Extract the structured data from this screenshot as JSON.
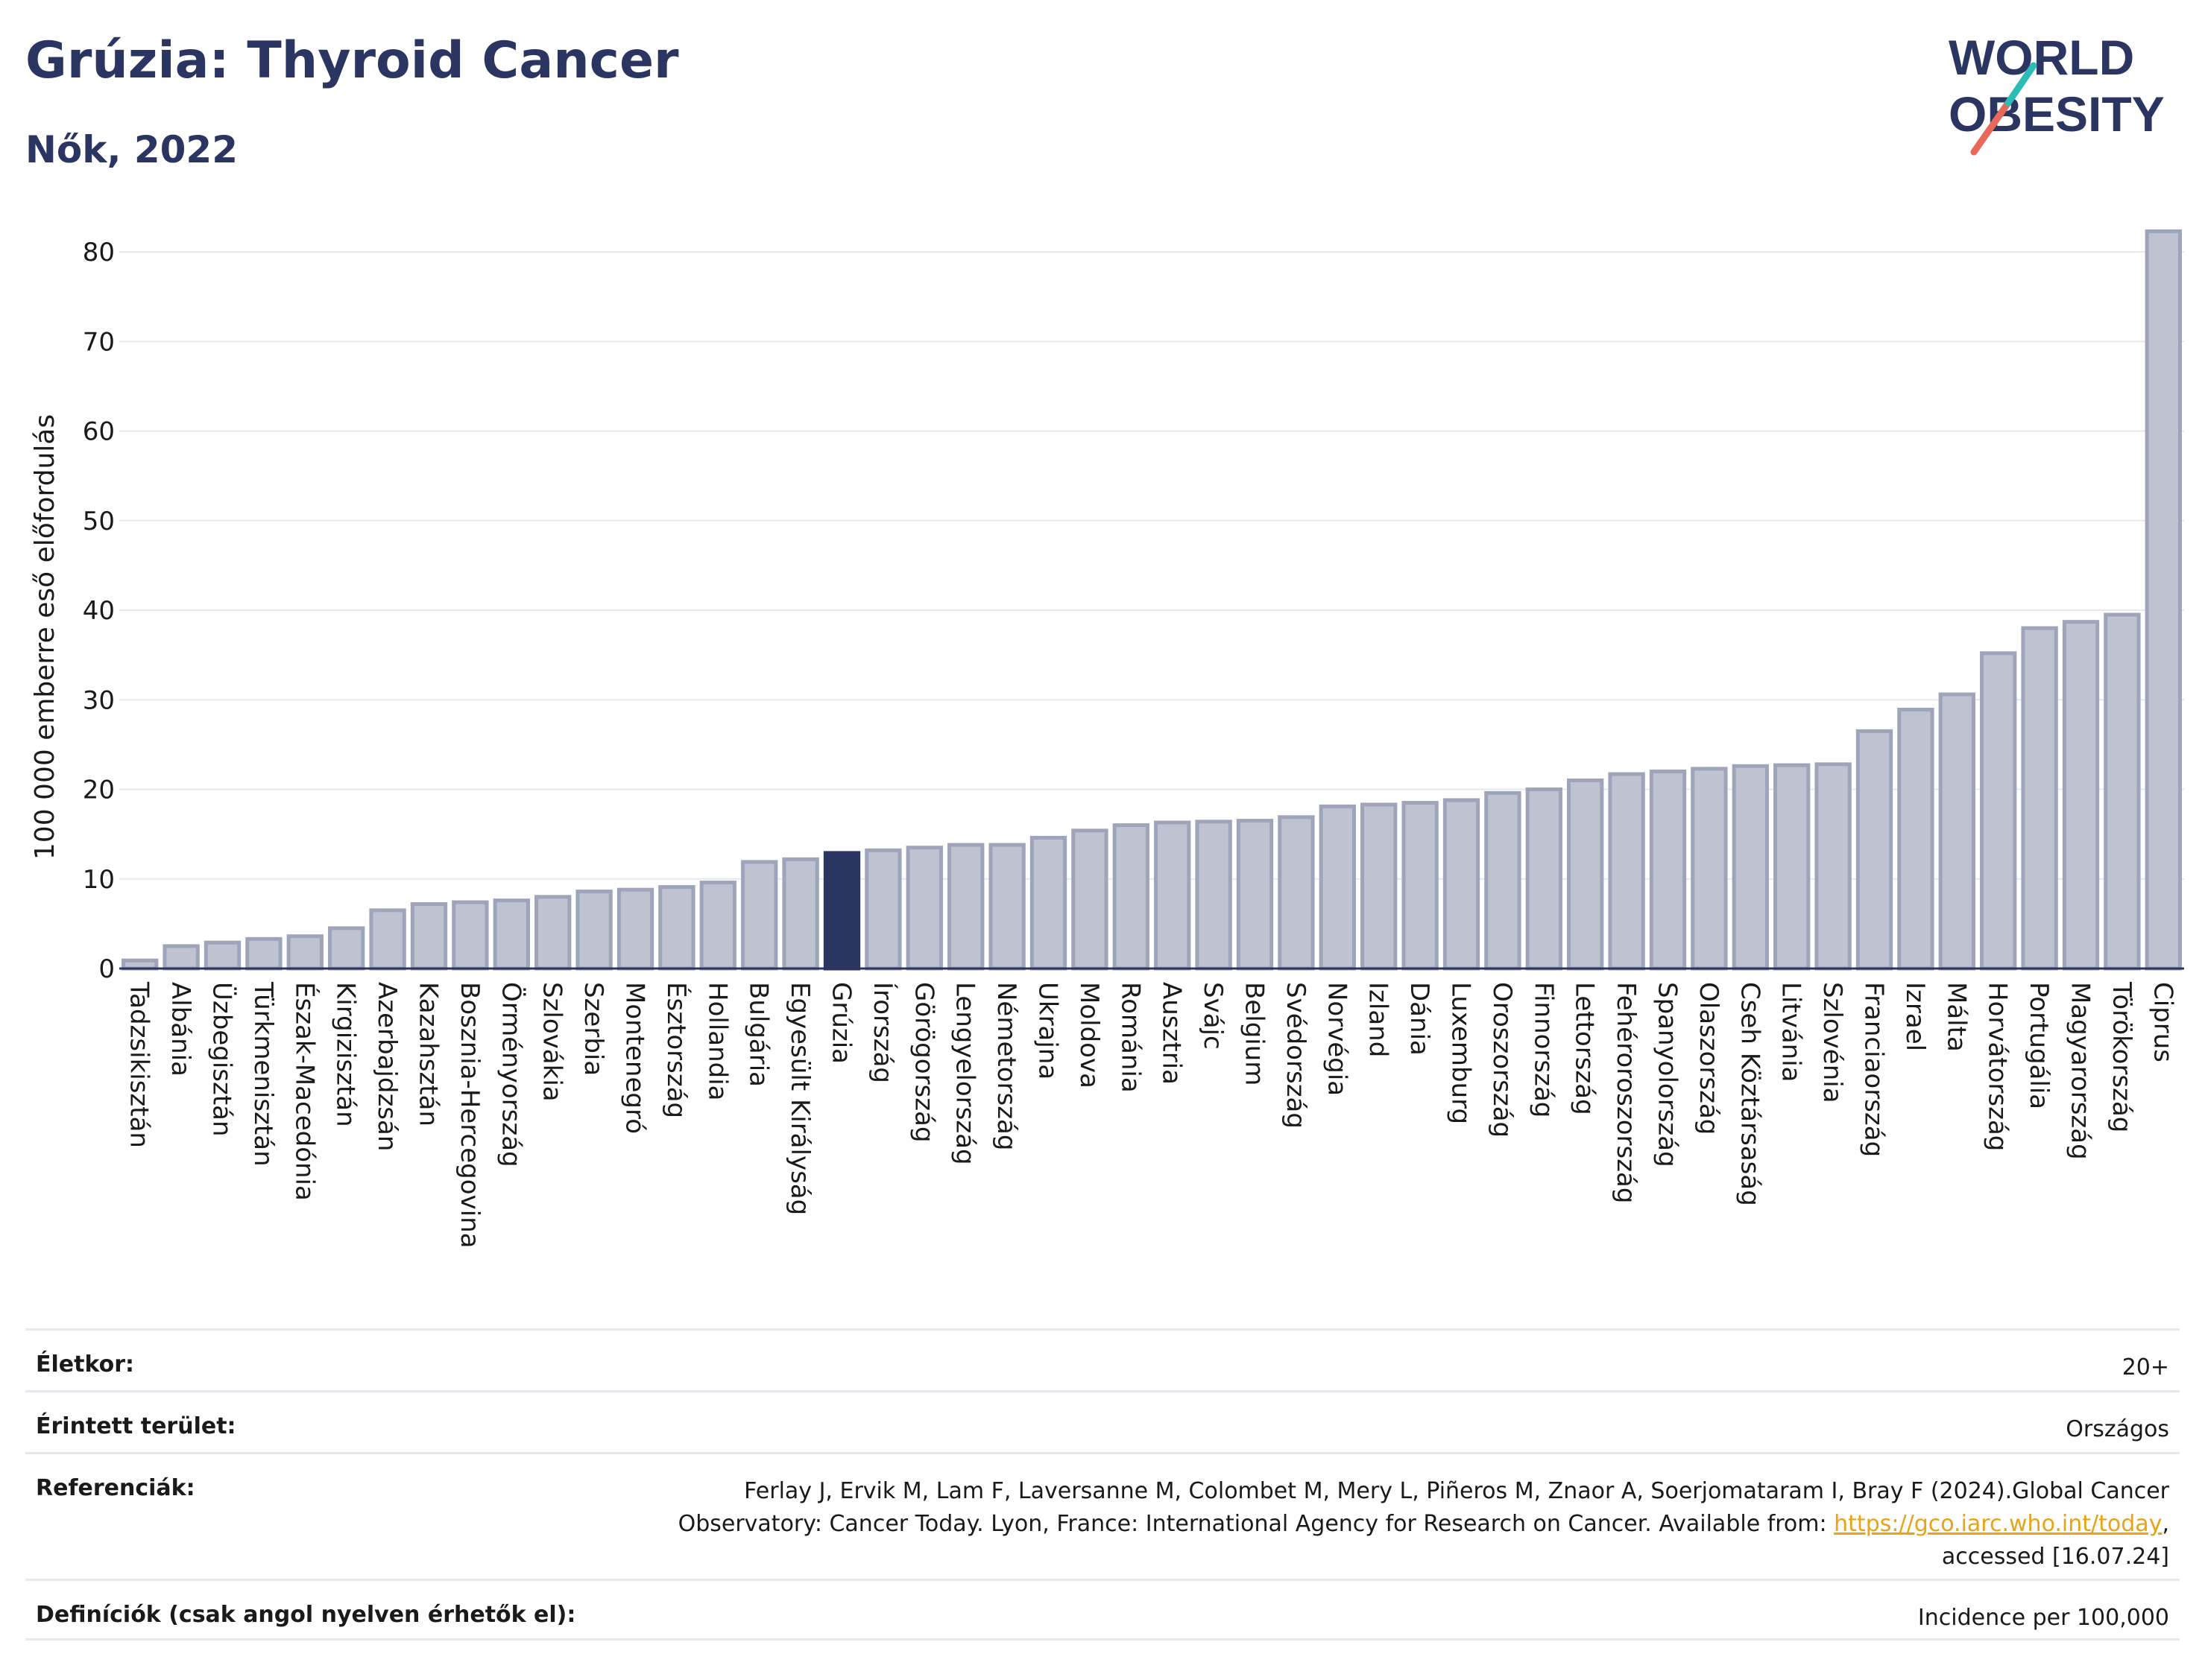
{
  "header": {
    "title": "Grúzia: Thyroid Cancer",
    "subtitle": "Nők, 2022"
  },
  "logo": {
    "line1": "WORLD",
    "line2": "OBESITY"
  },
  "colors": {
    "bar": "#bfc3d1",
    "bar_stroke": "#9ea4ba",
    "highlight": "#2b3561",
    "title": "#2b3561",
    "logo_slash_teal": "#2bbdb5",
    "logo_slash_red": "#e8695a"
  },
  "chart_data": {
    "type": "bar",
    "title": "Grúzia: Thyroid Cancer",
    "subtitle": "Nők, 2022",
    "xlabel": "",
    "ylabel": "100 000 emberre eső előfordulás",
    "ylim": [
      0,
      84
    ],
    "yticks": [
      0,
      10,
      20,
      30,
      40,
      50,
      60,
      70,
      80
    ],
    "grid": true,
    "highlight": "Grúzia",
    "categories": [
      "Tadzsikisztán",
      "Albánia",
      "Üzbegisztán",
      "Türkmenisztán",
      "Észak-Macedónia",
      "Kirgizisztán",
      "Azerbajdzsán",
      "Kazahsztán",
      "Bosznia-Hercegovina",
      "Örményország",
      "Szlovákia",
      "Szerbia",
      "Montenegró",
      "Észtország",
      "Hollandia",
      "Bulgária",
      "Egyesült Királyság",
      "Grúzia",
      "Írország",
      "Görögország",
      "Lengyelország",
      "Németország",
      "Ukrajna",
      "Moldova",
      "Románia",
      "Ausztria",
      "Svájc",
      "Belgium",
      "Svédország",
      "Norvégia",
      "Izland",
      "Dánia",
      "Luxemburg",
      "Oroszország",
      "Finnország",
      "Lettország",
      "Fehéroroszország",
      "Spanyolország",
      "Olaszország",
      "Cseh Köztársaság",
      "Litvánia",
      "Szlovénia",
      "Franciaország",
      "Izrael",
      "Málta",
      "Horvátország",
      "Portugália",
      "Magyarország",
      "Törökország",
      "Ciprus"
    ],
    "values": [
      0.9,
      2.5,
      2.9,
      3.3,
      3.6,
      4.5,
      6.5,
      7.2,
      7.4,
      7.6,
      8.0,
      8.6,
      8.8,
      9.1,
      9.6,
      11.9,
      12.2,
      12.9,
      13.2,
      13.5,
      13.8,
      13.8,
      14.6,
      15.4,
      16.0,
      16.3,
      16.4,
      16.5,
      16.9,
      18.1,
      18.3,
      18.5,
      18.8,
      19.6,
      20.0,
      21.0,
      21.7,
      22.0,
      22.3,
      22.6,
      22.7,
      22.8,
      26.5,
      28.9,
      30.6,
      35.2,
      38.0,
      38.7,
      39.5,
      82.3
    ]
  },
  "meta": {
    "age_label": "Életkor:",
    "age_value": "20+",
    "area_label": "Érintett terület:",
    "area_value": "Országos",
    "ref_label": "Referenciák:",
    "ref_text_1": "Ferlay J, Ervik M, Lam F, Laversanne M, Colombet M, Mery L, Piñeros M, Znaor A, Soerjomataram I, Bray F (2024).Global Cancer",
    "ref_text_2": "Observatory: Cancer Today. Lyon, France: International Agency for Research on Cancer. Available from: ",
    "ref_link": "https://gco.iarc.who.int/today",
    "ref_text_3": ",",
    "ref_text_4": "accessed [16.07.24]",
    "def_label": "Definíciók (csak angol nyelven érhetők el):",
    "def_value": "Incidence per 100,000"
  }
}
